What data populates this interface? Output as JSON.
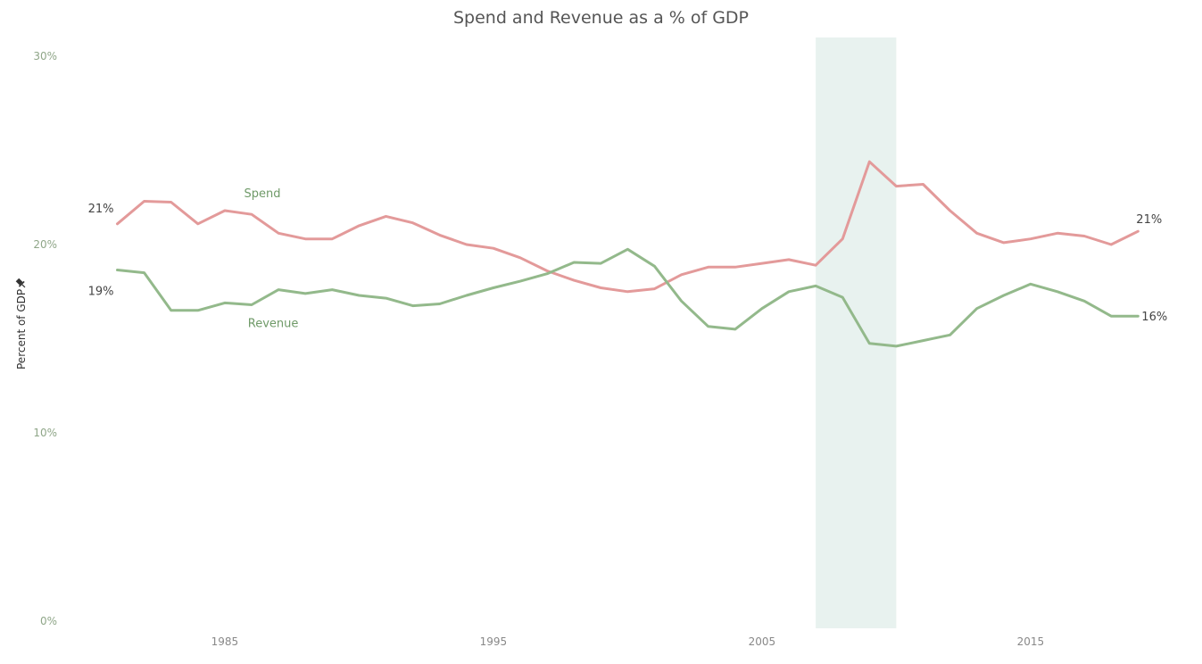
{
  "chart_data": {
    "type": "line",
    "title": "Spend and Revenue as a % of GDP",
    "ylabel": "Percent of GDP",
    "ylabel_icon": "pin-icon",
    "xlabel": "",
    "xlim": [
      1980.5,
      2019.8
    ],
    "ylim": [
      0,
      31
    ],
    "y_ticks": [
      0,
      10,
      20,
      30
    ],
    "y_tick_labels": [
      "0%",
      "10%",
      "20%",
      "30%"
    ],
    "x_ticks": [
      1985,
      1995,
      2005,
      2015
    ],
    "x_tick_labels": [
      "1985",
      "1995",
      "2005",
      "2015"
    ],
    "grid": false,
    "highlight_band": {
      "from": 2007,
      "to": 2010,
      "color": "#e8f2ef"
    },
    "series": [
      {
        "name": "Spend",
        "color": "#e39a9a",
        "label_year": 1986.4,
        "label_value": 22.7,
        "start_label": "21%",
        "end_label": "21%",
        "x": [
          1981,
          1982,
          1983,
          1984,
          1985,
          1986,
          1987,
          1988,
          1989,
          1990,
          1991,
          1992,
          1993,
          1994,
          1995,
          1996,
          1997,
          1998,
          1999,
          2000,
          2001,
          2002,
          2003,
          2004,
          2005,
          2006,
          2007,
          2008,
          2009,
          2010,
          2011,
          2012,
          2013,
          2014,
          2015,
          2016,
          2017,
          2018,
          2019
        ],
        "values": [
          21.1,
          22.3,
          22.25,
          21.1,
          21.8,
          21.6,
          20.6,
          20.3,
          20.3,
          21.0,
          21.5,
          21.15,
          20.5,
          20.0,
          19.8,
          19.3,
          18.6,
          18.1,
          17.7,
          17.5,
          17.65,
          18.4,
          18.8,
          18.8,
          19.0,
          19.2,
          18.9,
          20.3,
          24.4,
          23.1,
          23.2,
          21.8,
          20.6,
          20.1,
          20.3,
          20.6,
          20.45,
          20.0,
          20.7
        ]
      },
      {
        "name": "Revenue",
        "color": "#93b98b",
        "label_year": 1986.8,
        "label_value": 15.8,
        "start_label": "19%",
        "end_label": "16%",
        "x": [
          1981,
          1982,
          1983,
          1984,
          1985,
          1986,
          1987,
          1988,
          1989,
          1990,
          1991,
          1992,
          1993,
          1994,
          1995,
          1996,
          1997,
          1998,
          1999,
          2000,
          2001,
          2002,
          2003,
          2004,
          2005,
          2006,
          2007,
          2008,
          2009,
          2010,
          2011,
          2012,
          2013,
          2014,
          2015,
          2016,
          2017,
          2018,
          2019
        ],
        "values": [
          18.65,
          18.5,
          16.5,
          16.5,
          16.9,
          16.8,
          17.6,
          17.4,
          17.6,
          17.3,
          17.15,
          16.75,
          16.85,
          17.3,
          17.7,
          18.05,
          18.45,
          19.05,
          19.0,
          19.75,
          18.85,
          17.0,
          15.65,
          15.5,
          16.6,
          17.5,
          17.8,
          17.2,
          14.75,
          14.6,
          14.9,
          15.2,
          16.6,
          17.3,
          17.9,
          17.5,
          17.0,
          16.2,
          16.2
        ]
      }
    ]
  }
}
